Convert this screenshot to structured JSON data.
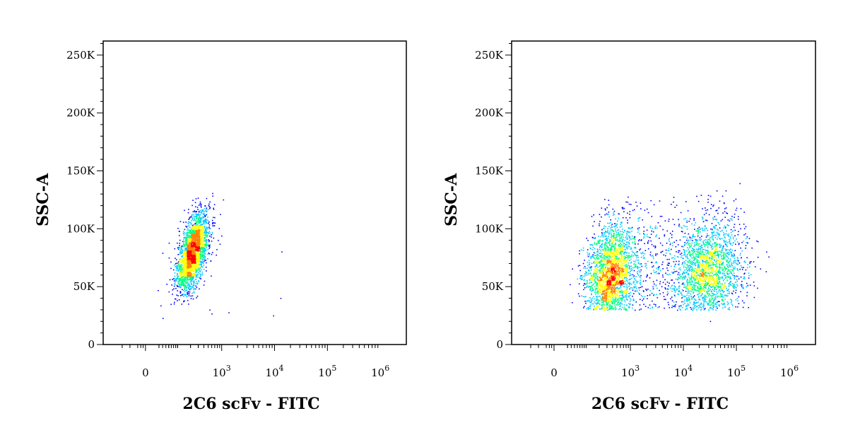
{
  "chart_data": [
    {
      "type": "scatter",
      "subtype": "flow-cytometry-density-dot-plot",
      "xlabel": "2C6 scFv - FITC",
      "ylabel": "SSC-A",
      "x_scale": "biexponential",
      "y_scale": "linear",
      "xlim": [
        -300,
        1000000
      ],
      "ylim": [
        0,
        262144
      ],
      "x_ticks": [
        {
          "value": 0,
          "base": "0",
          "exp": ""
        },
        {
          "value": 1000,
          "base": "10",
          "exp": "3"
        },
        {
          "value": 10000,
          "base": "10",
          "exp": "4"
        },
        {
          "value": 100000,
          "base": "10",
          "exp": "5"
        },
        {
          "value": 1000000,
          "base": "10",
          "exp": "6"
        }
      ],
      "y_ticks": [
        {
          "value": 0,
          "label": "0"
        },
        {
          "value": 50000,
          "label": "50K"
        },
        {
          "value": 100000,
          "label": "100K"
        },
        {
          "value": 150000,
          "label": "150K"
        },
        {
          "value": 200000,
          "label": "200K"
        },
        {
          "value": 250000,
          "label": "250K"
        }
      ],
      "colormap": [
        "#0000ff",
        "#00c8ff",
        "#00ff80",
        "#ffff00",
        "#ff8000",
        "#ff0000"
      ],
      "populations": [
        {
          "n": 2600,
          "x_median": 220,
          "x_spread_decades": 0.18,
          "y_mean": 80000,
          "y_sd": 17000,
          "y_min": 35000,
          "y_max": 133000,
          "xy_correlation": 0.55
        }
      ],
      "grid": false,
      "legend": "none"
    },
    {
      "type": "scatter",
      "subtype": "flow-cytometry-density-dot-plot",
      "xlabel": "2C6 scFv - FITC",
      "ylabel": "SSC-A",
      "x_scale": "biexponential",
      "y_scale": "linear",
      "xlim": [
        -300,
        1000000
      ],
      "ylim": [
        0,
        262144
      ],
      "x_ticks": [
        {
          "value": 0,
          "base": "0",
          "exp": ""
        },
        {
          "value": 1000,
          "base": "10",
          "exp": "3"
        },
        {
          "value": 10000,
          "base": "10",
          "exp": "4"
        },
        {
          "value": 100000,
          "base": "10",
          "exp": "5"
        },
        {
          "value": 1000000,
          "base": "10",
          "exp": "6"
        }
      ],
      "y_ticks": [
        {
          "value": 0,
          "label": "0"
        },
        {
          "value": 50000,
          "label": "50K"
        },
        {
          "value": 100000,
          "label": "100K"
        },
        {
          "value": 150000,
          "label": "150K"
        },
        {
          "value": 200000,
          "label": "200K"
        },
        {
          "value": 250000,
          "label": "250K"
        }
      ],
      "colormap": [
        "#0000ff",
        "#00c8ff",
        "#00ff80",
        "#ffff00",
        "#ff8000",
        "#ff0000"
      ],
      "populations": [
        {
          "n": 2300,
          "x_median": 350,
          "x_spread_decades": 0.28,
          "y_mean": 60000,
          "y_sd": 22000,
          "y_min": 30000,
          "y_max": 138000,
          "xy_correlation": 0.2
        },
        {
          "n": 2000,
          "x_median": 30000,
          "x_spread_decades": 0.32,
          "y_mean": 62000,
          "y_sd": 23000,
          "y_min": 30000,
          "y_max": 140000,
          "xy_correlation": 0.1
        },
        {
          "n": 700,
          "x_median": 3000,
          "x_spread_decades": 0.7,
          "y_mean": 65000,
          "y_sd": 28000,
          "y_min": 30000,
          "y_max": 140000,
          "xy_correlation": 0.0
        }
      ],
      "grid": false,
      "legend": "none"
    }
  ]
}
